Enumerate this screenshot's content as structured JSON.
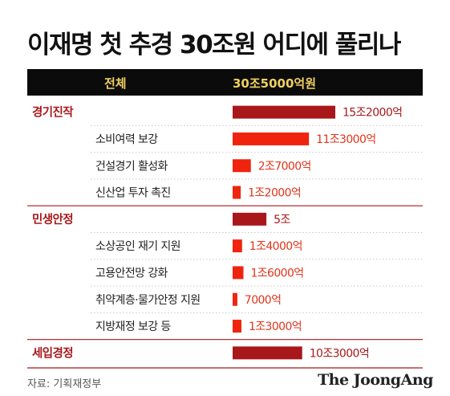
{
  "title": "이재명 첫 추경 30조원 어디에 풀리나",
  "header": {
    "category_label": "전체",
    "total_label": "30조5000억원"
  },
  "colors": {
    "header_band": "#0b0b0b",
    "header_text": "#f0d060",
    "group_bar": "#a8181b",
    "item_bar": "#f0240e",
    "group_text": "#a8181b",
    "item_text": "#222222",
    "group_value": "#a8181b",
    "item_value": "#e0351b",
    "divider": "#a8181b",
    "dotted": "#c9c9c9"
  },
  "chart_data": {
    "type": "bar",
    "orientation": "horizontal",
    "unit": "억원",
    "rows": [
      {
        "label": "경기진작",
        "level": "group",
        "value": 152000,
        "value_label": "15조2000억"
      },
      {
        "label": "소비여력 보강",
        "level": "item",
        "value": 113000,
        "value_label": "11조3000억"
      },
      {
        "label": "건설경기 활성화",
        "level": "item",
        "value": 27000,
        "value_label": "2조7000억"
      },
      {
        "label": "신산업 투자 촉진",
        "level": "item",
        "value": 12000,
        "value_label": "1조2000억"
      },
      {
        "label": "민생안정",
        "level": "group",
        "value": 50000,
        "value_label": "5조"
      },
      {
        "label": "소상공인 재기 지원",
        "level": "item",
        "value": 14000,
        "value_label": "1조4000억"
      },
      {
        "label": "고용안전망 강화",
        "level": "item",
        "value": 16000,
        "value_label": "1조6000억"
      },
      {
        "label": "취약계층·물가안정 지원",
        "level": "item",
        "value": 7000,
        "value_label": "7000억"
      },
      {
        "label": "지방재정 보강 등",
        "level": "item",
        "value": 13000,
        "value_label": "1조3000억"
      },
      {
        "label": "세입경정",
        "level": "group",
        "value": 103000,
        "value_label": "10조3000억"
      }
    ]
  },
  "footer": {
    "source": "자료: 기획재정부",
    "logo": "The JoongAng"
  }
}
